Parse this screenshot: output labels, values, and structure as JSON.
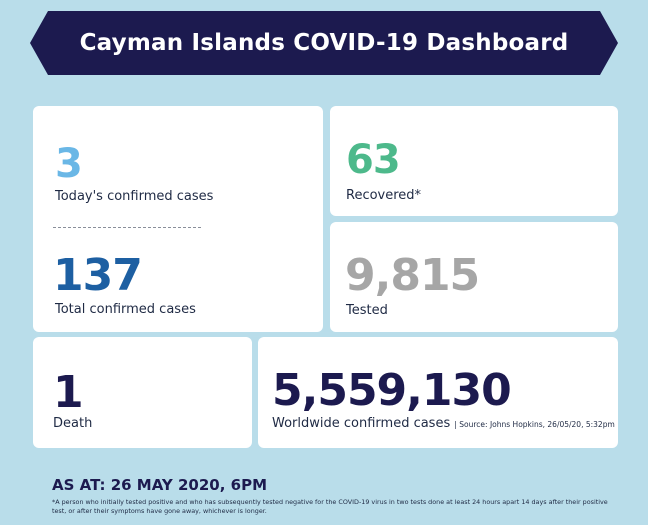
{
  "header": {
    "title": "Cayman Islands COVID-19 Dashboard"
  },
  "stats": {
    "today_confirmed": {
      "value": "3",
      "label": "Today's confirmed cases"
    },
    "total_confirmed": {
      "value": "137",
      "label": "Total confirmed cases"
    },
    "recovered": {
      "value": "63",
      "label": "Recovered*"
    },
    "tested": {
      "value": "9,815",
      "label": "Tested"
    },
    "deaths": {
      "value": "1",
      "label": "Death"
    },
    "worldwide": {
      "value": "5,559,130",
      "label": "Worldwide confirmed cases",
      "source": "| Source: Johns Hopkins, 26/05/20, 5:32pm"
    }
  },
  "footer": {
    "as_at": "AS AT: 26 MAY 2020, 6PM",
    "footnote": "*A person who initially tested positive and who has subsequently tested negative for the COVID-19 virus in two tests done at least 24 hours apart 14 days after their positive test, or after their symptoms have gone away, whichever is longer."
  },
  "colors": {
    "background": "#b9ddea",
    "banner": "#1c1a4f",
    "today": "#6ab7e6",
    "total": "#1d5fa2",
    "recovered": "#4db98b",
    "tested": "#a6a6a6",
    "dark": "#1c1a4f"
  }
}
